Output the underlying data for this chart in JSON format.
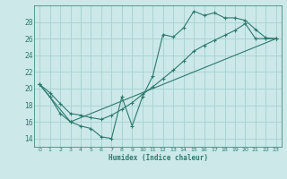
{
  "xlabel": "Humidex (Indice chaleur)",
  "bg_color": "#cce8e8",
  "grid_color": "#aad4d4",
  "line_color": "#2d7a6e",
  "xlim": [
    -0.5,
    23.5
  ],
  "ylim": [
    13.0,
    30.0
  ],
  "xticks": [
    0,
    1,
    2,
    3,
    4,
    5,
    6,
    7,
    8,
    9,
    10,
    11,
    12,
    13,
    14,
    15,
    16,
    17,
    18,
    19,
    20,
    21,
    22,
    23
  ],
  "yticks": [
    14,
    16,
    18,
    20,
    22,
    24,
    26,
    28
  ],
  "line1_x": [
    0,
    1,
    2,
    3,
    4,
    5,
    6,
    7,
    8,
    9,
    10,
    11,
    12,
    13,
    14,
    15,
    16,
    17,
    18,
    19,
    20,
    21,
    22,
    23
  ],
  "line1_y": [
    20.5,
    19.0,
    17.0,
    16.0,
    15.5,
    15.2,
    14.2,
    14.0,
    19.0,
    15.5,
    19.0,
    21.5,
    26.5,
    26.2,
    27.3,
    29.3,
    28.8,
    29.1,
    28.5,
    28.5,
    28.2,
    27.1,
    26.1,
    26.0
  ],
  "line2_x": [
    0,
    1,
    2,
    3,
    4,
    5,
    6,
    7,
    8,
    9,
    10,
    11,
    12,
    13,
    14,
    15,
    16,
    17,
    18,
    19,
    20,
    21,
    22,
    23
  ],
  "line2_y": [
    20.5,
    19.5,
    18.2,
    17.0,
    16.8,
    16.5,
    16.3,
    16.8,
    17.5,
    18.3,
    19.3,
    20.2,
    21.2,
    22.2,
    23.3,
    24.5,
    25.2,
    25.8,
    26.4,
    27.0,
    27.8,
    26.0,
    26.0,
    26.0
  ],
  "line3_x": [
    0,
    3,
    23
  ],
  "line3_y": [
    20.5,
    16.0,
    26.0
  ]
}
